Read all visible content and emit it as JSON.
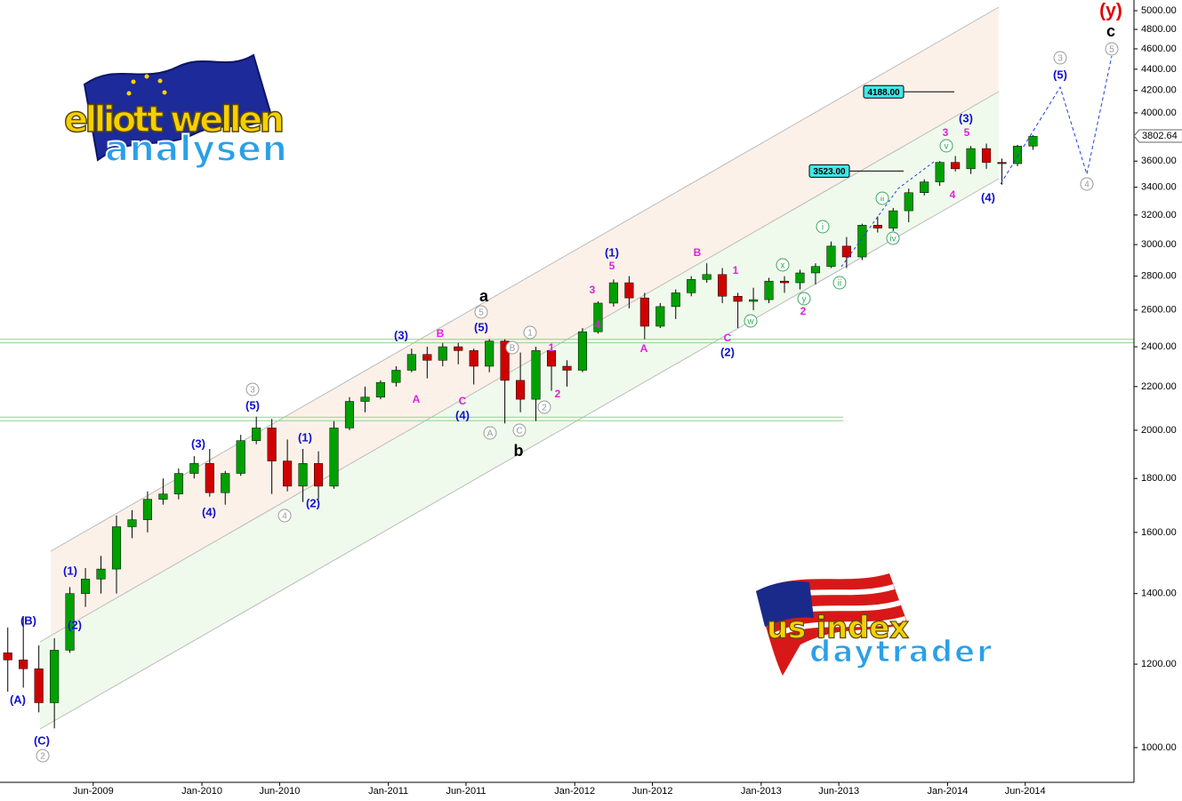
{
  "chart_data": {
    "type": "candlestick",
    "log_scale": true,
    "up_color": "#00a000",
    "down_color": "#d00000",
    "wick_color": "#000000",
    "x": [
      "2008-12",
      "2009-01",
      "2009-02",
      "2009-03",
      "2009-04",
      "2009-05",
      "2009-06",
      "2009-07",
      "2009-08",
      "2009-09",
      "2009-10",
      "2009-11",
      "2009-12",
      "2010-01",
      "2010-02",
      "2010-03",
      "2010-04",
      "2010-05",
      "2010-06",
      "2010-07",
      "2010-08",
      "2010-09",
      "2010-10",
      "2010-11",
      "2010-12",
      "2011-01",
      "2011-02",
      "2011-03",
      "2011-04",
      "2011-05",
      "2011-06",
      "2011-07",
      "2011-08",
      "2011-09",
      "2011-10",
      "2011-11",
      "2011-12",
      "2012-01",
      "2012-02",
      "2012-03",
      "2012-04",
      "2012-05",
      "2012-06",
      "2012-07",
      "2012-08",
      "2012-09",
      "2012-10",
      "2012-11",
      "2012-12",
      "2013-01",
      "2013-02",
      "2013-03",
      "2013-04",
      "2013-05",
      "2013-06",
      "2013-07",
      "2013-08",
      "2013-09",
      "2013-10",
      "2013-11",
      "2013-12",
      "2014-01",
      "2014-02",
      "2014-03",
      "2014-04",
      "2014-05",
      "2014-06"
    ],
    "open": [
      1230,
      1211,
      1188,
      1103,
      1237,
      1400,
      1445,
      1477,
      1620,
      1645,
      1720,
      1740,
      1820,
      1860,
      1745,
      1820,
      1955,
      2010,
      1870,
      1770,
      1860,
      1770,
      2010,
      2130,
      2150,
      2220,
      2280,
      2360,
      2330,
      2400,
      2380,
      2300,
      2430,
      2230,
      2140,
      2380,
      2300,
      2280,
      2480,
      2640,
      2760,
      2670,
      2510,
      2620,
      2700,
      2780,
      2810,
      2680,
      2650,
      2660,
      2770,
      2760,
      2820,
      2860,
      2990,
      2920,
      3130,
      3110,
      3230,
      3360,
      3440,
      3590,
      3540,
      3700,
      3590,
      3580,
      3720
    ],
    "high": [
      1300,
      1330,
      1250,
      1270,
      1420,
      1480,
      1520,
      1660,
      1680,
      1750,
      1800,
      1840,
      1890,
      1920,
      1830,
      1980,
      2060,
      2050,
      1960,
      1920,
      1910,
      2040,
      2150,
      2200,
      2230,
      2300,
      2390,
      2400,
      2420,
      2420,
      2390,
      2440,
      2440,
      2370,
      2400,
      2410,
      2330,
      2500,
      2650,
      2780,
      2800,
      2700,
      2640,
      2720,
      2800,
      2880,
      2850,
      2700,
      2730,
      2790,
      2800,
      2840,
      2880,
      3020,
      3050,
      3140,
      3190,
      3250,
      3390,
      3460,
      3600,
      3640,
      3720,
      3740,
      3620,
      3730,
      3810
    ],
    "low": [
      1130,
      1140,
      1080,
      1043,
      1230,
      1360,
      1400,
      1400,
      1580,
      1600,
      1700,
      1720,
      1800,
      1730,
      1700,
      1810,
      1940,
      1740,
      1750,
      1710,
      1720,
      1760,
      2000,
      2080,
      2140,
      2200,
      2270,
      2240,
      2300,
      2310,
      2210,
      2270,
      2030,
      2080,
      2040,
      2180,
      2200,
      2270,
      2470,
      2620,
      2610,
      2440,
      2500,
      2550,
      2680,
      2760,
      2640,
      2500,
      2600,
      2640,
      2700,
      2720,
      2750,
      2850,
      2850,
      2900,
      3080,
      3090,
      3150,
      3340,
      3410,
      3520,
      3500,
      3540,
      3420,
      3560,
      3690
    ],
    "close": [
      1211,
      1188,
      1103,
      1237,
      1400,
      1445,
      1477,
      1620,
      1645,
      1720,
      1740,
      1820,
      1860,
      1745,
      1820,
      1955,
      2010,
      1870,
      1770,
      1860,
      1770,
      2010,
      2130,
      2150,
      2220,
      2280,
      2360,
      2330,
      2400,
      2380,
      2300,
      2430,
      2230,
      2140,
      2380,
      2300,
      2280,
      2480,
      2640,
      2760,
      2670,
      2510,
      2620,
      2700,
      2780,
      2810,
      2680,
      2650,
      2660,
      2770,
      2760,
      2820,
      2860,
      2990,
      2920,
      3130,
      3110,
      3230,
      3360,
      3440,
      3590,
      3540,
      3700,
      3590,
      3580,
      3720,
      3800
    ],
    "xlim": [
      "2008-12",
      "2015-01"
    ],
    "xticks": [
      {
        "value": "2009-06",
        "label": "Jun-2009"
      },
      {
        "value": "2010-01",
        "label": "Jan-2010"
      },
      {
        "value": "2010-06",
        "label": "Jun-2010"
      },
      {
        "value": "2011-01",
        "label": "Jan-2011"
      },
      {
        "value": "2011-06",
        "label": "Jun-2011"
      },
      {
        "value": "2012-01",
        "label": "Jan-2012"
      },
      {
        "value": "2012-06",
        "label": "Jun-2012"
      },
      {
        "value": "2013-01",
        "label": "Jan-2013"
      },
      {
        "value": "2013-06",
        "label": "Jun-2013"
      },
      {
        "value": "2014-01",
        "label": "Jan-2014"
      },
      {
        "value": "2014-06",
        "label": "Jun-2014"
      }
    ],
    "ylim": [
      927,
      5118
    ],
    "yticks": [
      {
        "value": 1000,
        "label": "1000.00"
      },
      {
        "value": 1200,
        "label": "1200.00"
      },
      {
        "value": 1400,
        "label": "1400.00"
      },
      {
        "value": 1600,
        "label": "1600.00"
      },
      {
        "value": 1800,
        "label": "1800.00"
      },
      {
        "value": 2000,
        "label": "2000.00"
      },
      {
        "value": 2200,
        "label": "2200.00"
      },
      {
        "value": 2400,
        "label": "2400.00"
      },
      {
        "value": 2600,
        "label": "2600.00"
      },
      {
        "value": 2800,
        "label": "2800.00"
      },
      {
        "value": 3000,
        "label": "3000.00"
      },
      {
        "value": 3200,
        "label": "3200.00"
      },
      {
        "value": 3400,
        "label": "3400.00"
      },
      {
        "value": 3600,
        "label": "3600.00"
      },
      {
        "value": 3800,
        "label": "3800.00"
      },
      {
        "value": 4000,
        "label": "4000.00"
      },
      {
        "value": 4200,
        "label": "4200.00"
      },
      {
        "value": 4400,
        "label": "4400.00"
      },
      {
        "value": 4600,
        "label": "4600.00"
      },
      {
        "value": 4800,
        "label": "4800.00"
      },
      {
        "value": 5000,
        "label": "5000.00"
      }
    ],
    "last_price": {
      "value": 3802.64,
      "label": "3802.64"
    },
    "price_lines": [
      {
        "value": 4188,
        "label": "4188.00"
      },
      {
        "value": 3523,
        "label": "3523.00"
      }
    ],
    "hlines": [
      2430,
      2050
    ],
    "wave_labels": [
      {
        "text": "(A)",
        "color": "#1010d0"
      },
      {
        "text": "(B)",
        "color": "#1010d0"
      },
      {
        "text": "(C)",
        "color": "#1010d0"
      },
      {
        "text": "(1)",
        "color": "#1010d0"
      },
      {
        "text": "(2)",
        "color": "#1010d0"
      },
      {
        "text": "(3)",
        "color": "#1010d0"
      },
      {
        "text": "(4)",
        "color": "#1010d0"
      },
      {
        "text": "(5)",
        "color": "#1010d0"
      },
      {
        "text": "(1)",
        "color": "#1010d0"
      },
      {
        "text": "(2)",
        "color": "#1010d0"
      },
      {
        "text": "(3)",
        "color": "#1010d0"
      },
      {
        "text": "(4)",
        "color": "#1010d0"
      },
      {
        "text": "(5)",
        "color": "#1010d0"
      },
      {
        "text": "(1)",
        "color": "#1010d0"
      },
      {
        "text": "(2)",
        "color": "#1010d0"
      },
      {
        "text": "(3)",
        "color": "#1010d0"
      },
      {
        "text": "(4)",
        "color": "#1010d0"
      },
      {
        "text": "(5)",
        "color": "#1010d0"
      },
      {
        "text": "B",
        "color": "#e020e0"
      },
      {
        "text": "A",
        "color": "#e020e0"
      },
      {
        "text": "C",
        "color": "#e020e0"
      },
      {
        "text": "1",
        "color": "#e020e0"
      },
      {
        "text": "2",
        "color": "#e020e0"
      },
      {
        "text": "3",
        "color": "#e020e0"
      },
      {
        "text": "4",
        "color": "#e020e0"
      },
      {
        "text": "5",
        "color": "#e020e0"
      },
      {
        "text": "A",
        "color": "#e020e0"
      },
      {
        "text": "B",
        "color": "#e020e0"
      },
      {
        "text": "1",
        "color": "#e020e0"
      },
      {
        "text": "C",
        "color": "#e020e0"
      },
      {
        "text": "2",
        "color": "#e020e0"
      },
      {
        "text": "3",
        "color": "#e020e0"
      },
      {
        "text": "5",
        "color": "#e020e0"
      },
      {
        "text": "4",
        "color": "#e020e0"
      },
      {
        "text": "a",
        "color": "#000000"
      },
      {
        "text": "b",
        "color": "#000000"
      },
      {
        "text": "c",
        "color": "#000000"
      },
      {
        "text": "(y)",
        "color": "#e00000"
      },
      {
        "text": "2",
        "color": "#999999",
        "circled": true
      },
      {
        "text": "3",
        "color": "#999999",
        "circled": true
      },
      {
        "text": "4",
        "color": "#999999",
        "circled": true
      },
      {
        "text": "5",
        "color": "#999999",
        "circled": true
      },
      {
        "text": "A",
        "color": "#999999",
        "circled": true
      },
      {
        "text": "B",
        "color": "#999999",
        "circled": true
      },
      {
        "text": "1",
        "color": "#999999",
        "circled": true
      },
      {
        "text": "C",
        "color": "#999999",
        "circled": true
      },
      {
        "text": "2",
        "color": "#999999",
        "circled": true
      },
      {
        "text": "3",
        "color": "#999999",
        "circled": true
      },
      {
        "text": "5",
        "color": "#999999",
        "circled": true
      },
      {
        "text": "4",
        "color": "#999999",
        "circled": true
      },
      {
        "text": "w",
        "color": "#3aa860",
        "circled": true
      },
      {
        "text": "x",
        "color": "#3aa860",
        "circled": true
      },
      {
        "text": "y",
        "color": "#3aa860",
        "circled": true
      },
      {
        "text": "i",
        "color": "#3aa860",
        "circled": true
      },
      {
        "text": "ii",
        "color": "#3aa860",
        "circled": true
      },
      {
        "text": "v",
        "color": "#3aa860",
        "circled": true
      },
      {
        "text": "iii",
        "color": "#3aa860",
        "circled": true
      },
      {
        "text": "iv",
        "color": "#3aa860",
        "circled": true
      }
    ]
  },
  "logos": {
    "elliott": {
      "line1": "elliott wellen",
      "line2": "analysen"
    },
    "us": {
      "line1": "us index",
      "line2": "daytrader"
    }
  }
}
